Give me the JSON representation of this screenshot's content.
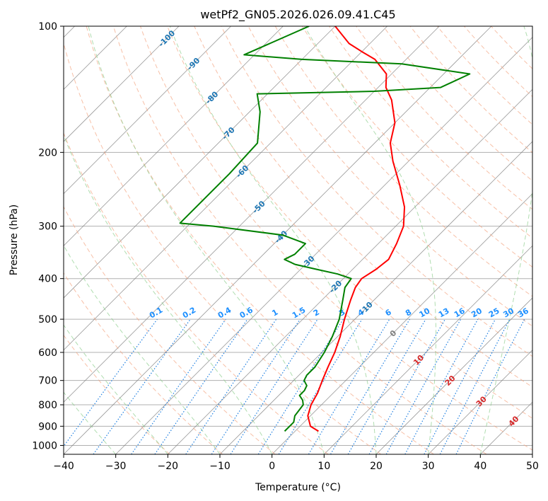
{
  "chart_data": {
    "type": "line",
    "title": "wetPf2_GN05.2026.026.09.41.C45",
    "xlabel": "Temperature (°C)",
    "ylabel": "Pressure (hPa)",
    "xlim": [
      -40,
      50
    ],
    "ylim": [
      1050,
      100
    ],
    "y_scale": "log",
    "skew": "skew-T log-P",
    "x_ticks": [
      "−40",
      "−30",
      "−20",
      "−10",
      "0",
      "10",
      "20",
      "30",
      "40",
      "50"
    ],
    "x_tick_values": [
      -40,
      -30,
      -20,
      -10,
      0,
      10,
      20,
      30,
      40,
      50
    ],
    "y_ticks": [
      "100",
      "200",
      "300",
      "400",
      "500",
      "600",
      "700",
      "800",
      "900",
      "1000"
    ],
    "y_tick_values": [
      100,
      200,
      300,
      400,
      500,
      600,
      700,
      800,
      900,
      1000
    ],
    "grid": true,
    "series": [
      {
        "color": "#ff0000",
        "points": [
          {
            "p": 925,
            "t": 4.5
          },
          {
            "p": 900,
            "t": 2.0
          },
          {
            "p": 850,
            "t": -0.5
          },
          {
            "p": 800,
            "t": -2.0
          },
          {
            "p": 750,
            "t": -3.0
          },
          {
            "p": 700,
            "t": -4.5
          },
          {
            "p": 650,
            "t": -6.0
          },
          {
            "p": 600,
            "t": -7.5
          },
          {
            "p": 550,
            "t": -9.5
          },
          {
            "p": 500,
            "t": -12.0
          },
          {
            "p": 450,
            "t": -14.5
          },
          {
            "p": 420,
            "t": -16.0
          },
          {
            "p": 400,
            "t": -16.5
          },
          {
            "p": 380,
            "t": -15.5
          },
          {
            "p": 360,
            "t": -15.0
          },
          {
            "p": 330,
            "t": -16.5
          },
          {
            "p": 300,
            "t": -18.5
          },
          {
            "p": 270,
            "t": -22.0
          },
          {
            "p": 240,
            "t": -27.0
          },
          {
            "p": 210,
            "t": -33.0
          },
          {
            "p": 190,
            "t": -37.0
          },
          {
            "p": 170,
            "t": -40.0
          },
          {
            "p": 150,
            "t": -45.0
          },
          {
            "p": 140,
            "t": -48.5
          },
          {
            "p": 130,
            "t": -51.0
          },
          {
            "p": 120,
            "t": -56.0
          },
          {
            "p": 115,
            "t": -60.0
          },
          {
            "p": 110,
            "t": -64.0
          },
          {
            "p": 100,
            "t": -70.0
          }
        ]
      },
      {
        "color": "#008000",
        "points": [
          {
            "p": 925,
            "t": -2.0
          },
          {
            "p": 880,
            "t": -2.0
          },
          {
            "p": 850,
            "t": -3.0
          },
          {
            "p": 800,
            "t": -3.5
          },
          {
            "p": 780,
            "t": -4.5
          },
          {
            "p": 760,
            "t": -6.0
          },
          {
            "p": 740,
            "t": -6.0
          },
          {
            "p": 720,
            "t": -6.5
          },
          {
            "p": 700,
            "t": -8.0
          },
          {
            "p": 680,
            "t": -8.5
          },
          {
            "p": 650,
            "t": -8.5
          },
          {
            "p": 600,
            "t": -9.5
          },
          {
            "p": 550,
            "t": -11.0
          },
          {
            "p": 500,
            "t": -13.0
          },
          {
            "p": 450,
            "t": -16.0
          },
          {
            "p": 420,
            "t": -18.0
          },
          {
            "p": 400,
            "t": -18.5
          },
          {
            "p": 390,
            "t": -22.0
          },
          {
            "p": 380,
            "t": -27.0
          },
          {
            "p": 370,
            "t": -32.0
          },
          {
            "p": 360,
            "t": -35.0
          },
          {
            "p": 350,
            "t": -34.0
          },
          {
            "p": 330,
            "t": -34.0
          },
          {
            "p": 315,
            "t": -40.0
          },
          {
            "p": 300,
            "t": -55.0
          },
          {
            "p": 295,
            "t": -62.0
          },
          {
            "p": 225,
            "t": -62.0
          },
          {
            "p": 190,
            "t": -62.5
          },
          {
            "p": 160,
            "t": -68.0
          },
          {
            "p": 145,
            "t": -72.0
          },
          {
            "p": 143,
            "t": -50.0
          },
          {
            "p": 140,
            "t": -38.0
          },
          {
            "p": 130,
            "t": -35.0
          },
          {
            "p": 123,
            "t": -50.0
          },
          {
            "p": 120,
            "t": -70.0
          },
          {
            "p": 117,
            "t": -82.0
          },
          {
            "p": 100,
            "t": -75.0
          }
        ]
      }
    ],
    "dry_adiabats_K": [
      250,
      260,
      270,
      280,
      290,
      300,
      310,
      320,
      330,
      340,
      350,
      360,
      370,
      380,
      390,
      400,
      410,
      420,
      430,
      440,
      450
    ],
    "moist_adiabat_start_temps": [
      -40,
      -30,
      -20,
      -10,
      0,
      10,
      20,
      30,
      40
    ],
    "mixing_ratio_lines": [
      "0.1",
      "0.2",
      "0.4",
      "0.6",
      "1",
      "1.5",
      "2",
      "3",
      "4",
      "6",
      "8",
      "10",
      "13",
      "16",
      "20",
      "25",
      "30",
      "36"
    ],
    "mixing_ratio_values": [
      0.1,
      0.2,
      0.4,
      0.6,
      1,
      1.5,
      2,
      3,
      4,
      6,
      8,
      10,
      13,
      16,
      20,
      25,
      30,
      36
    ],
    "isotherm_labels_blue": [
      "-100",
      "-90",
      "-80",
      "-70",
      "-60",
      "-50",
      "-40",
      "-30",
      "-20",
      "-10"
    ],
    "isotherm_labels_blue_values": [
      -100,
      -90,
      -80,
      -70,
      -60,
      -50,
      -40,
      -30,
      -20,
      -10
    ],
    "isotherm_labels_red": [
      "10",
      "20",
      "30",
      "40"
    ],
    "isotherm_labels_red_values": [
      10,
      20,
      30,
      40
    ],
    "isotherm_label_zero": "0",
    "colors": {
      "temperature": "#ff0000",
      "dewpoint": "#008000",
      "isotherm": "#808080",
      "dry_adiabat": "#f4a582",
      "moist_adiabat": "#8fce8f",
      "mixing_ratio": "#1f7fe0",
      "cold_label": "#1f77b4",
      "warm_label": "#d62728",
      "zero_label": "#7f7f7f",
      "mixing_label": "#1e90ff",
      "grid": "#b0b0b0"
    }
  }
}
